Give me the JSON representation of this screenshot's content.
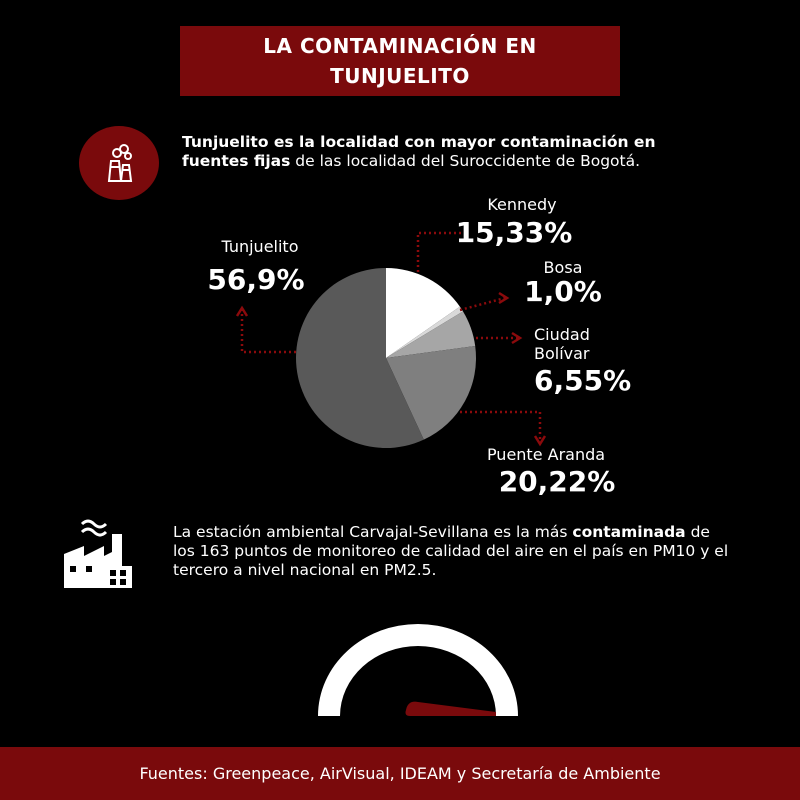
{
  "title": {
    "line1": "LA CONTAMINACIÓN EN",
    "line2": "TUNJUELITO"
  },
  "intro": {
    "text_bold_1": "Tunjuelito es la localidad con mayor contaminación en fuentes fijas",
    "text_rest": " de las localidad del Suroccidente de Bogotá.",
    "icon": "factory-smoke-icon"
  },
  "station": {
    "text_1": "La estación ambiental Carvajal-Sevillana es la más ",
    "text_bold": "contaminada",
    "text_2": " de los 163 puntos de monitoreo de calidad del aire en el país en PM10 y el tercero a nivel nacional en PM2.5.",
    "icon": "factory-icon"
  },
  "chart_data": {
    "type": "pie",
    "title": "",
    "slices": [
      {
        "label": "Kennedy",
        "value": 15.33,
        "value_label": "15,33%",
        "color": "#ffffff"
      },
      {
        "label": "Bosa",
        "value": 1.0,
        "value_label": "1,0%",
        "color": "#d9d9d9"
      },
      {
        "label": "Ciudad Bolívar",
        "value": 6.55,
        "value_label": "6,55%",
        "color": "#a6a6a6"
      },
      {
        "label": "Puente Aranda",
        "value": 20.22,
        "value_label": "20,22%",
        "color": "#7f7f7f"
      },
      {
        "label": "Tunjuelito",
        "value": 56.9,
        "value_label": "56,9%",
        "color": "#595959"
      }
    ],
    "label_lines": [
      [
        "Kennedy"
      ],
      [
        "Bosa"
      ],
      [
        "Ciudad",
        "Bolívar"
      ],
      [
        "Puente Aranda"
      ],
      [
        "Tunjuelito"
      ]
    ],
    "legend": "none",
    "leader_color": "#8b0a0c"
  },
  "footer": {
    "sources": "Fuentes: Greenpeace, AirVisual, IDEAM y Secretaría de Ambiente"
  },
  "gauge": {
    "icon": "gauge-icon",
    "needle_color": "#7a0a0c"
  },
  "colors": {
    "accent": "#7a0a0c",
    "background": "#000000"
  }
}
